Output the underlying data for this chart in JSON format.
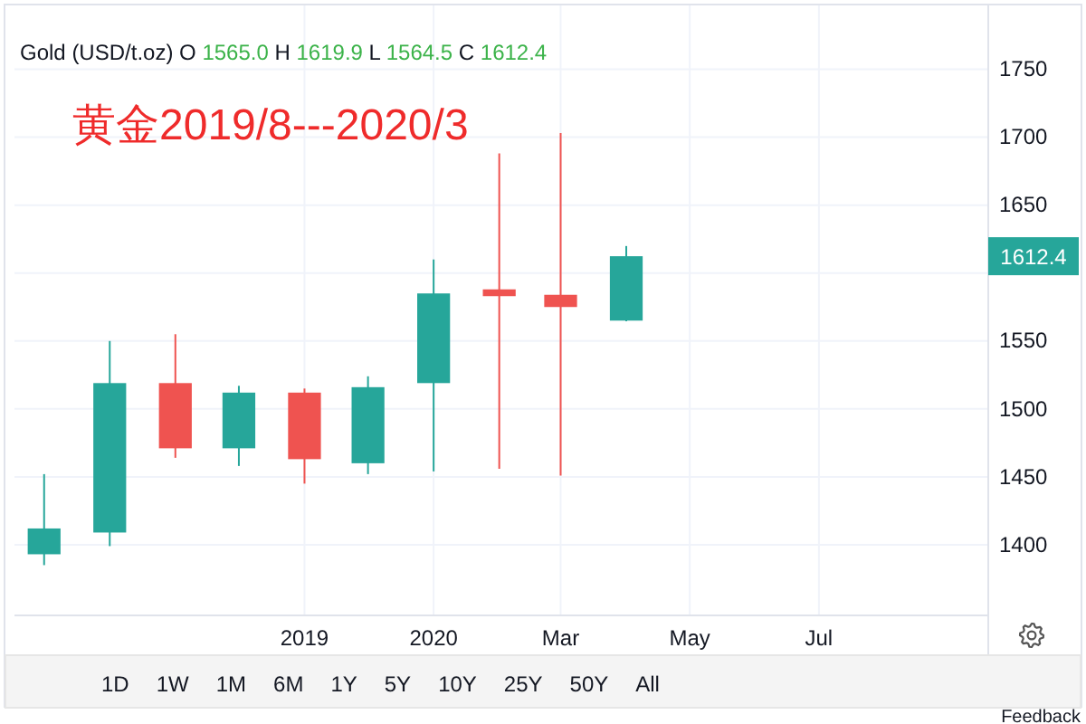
{
  "chart_data": {
    "type": "candlestick",
    "title": "Gold (USD/t.oz) O 1565.0 H 1619.9 L 1564.5 C 1612.4",
    "subtitle": "黄金2019/8---2020/3",
    "x": [
      "2019-07",
      "2019-08",
      "2019-09",
      "2019-10",
      "2019-11",
      "2019-12",
      "2020-01",
      "2020-02",
      "2020-03",
      "2020-04"
    ],
    "ohlc": [
      [
        1393,
        1452,
        1385,
        1412
      ],
      [
        1409,
        1550,
        1399,
        1519
      ],
      [
        1519,
        1555,
        1464,
        1471
      ],
      [
        1471,
        1517,
        1458,
        1512
      ],
      [
        1512,
        1515,
        1445,
        1463
      ],
      [
        1460,
        1524,
        1452,
        1516
      ],
      [
        1519,
        1610,
        1454,
        1585
      ],
      [
        1588,
        1688,
        1456,
        1583
      ],
      [
        1584,
        1703,
        1451,
        1575
      ],
      [
        1565.0,
        1619.9,
        1564.5,
        1612.4
      ]
    ],
    "colors": [
      "#26a69a",
      "#26a69a",
      "#ef5350",
      "#26a69a",
      "#ef5350",
      "#26a69a",
      "#26a69a",
      "#ef5350",
      "#ef5350",
      "#26a69a"
    ],
    "xlim": [
      "2019-06-17",
      "2020-09-19"
    ],
    "xticks": [
      {
        "value": "2019-11",
        "label": "2019"
      },
      {
        "value": "2020-01",
        "label": "2020"
      },
      {
        "value": "2020-03",
        "label": "Mar"
      },
      {
        "value": "2020-05",
        "label": "May"
      },
      {
        "value": "2020-07",
        "label": "Jul"
      }
    ],
    "ylim": [
      1348,
      1797
    ],
    "yticks": [
      1400,
      1450,
      1500,
      1550,
      {
        "value": 1600,
        "label": null
      },
      1650,
      1700,
      1750
    ],
    "grid": true,
    "annotations": [
      "1612.4",
      "1D",
      "1W",
      "1M",
      "6M",
      "1Y",
      "5Y",
      "10Y",
      "25Y",
      "50Y",
      "All",
      "Feedback"
    ]
  }
}
